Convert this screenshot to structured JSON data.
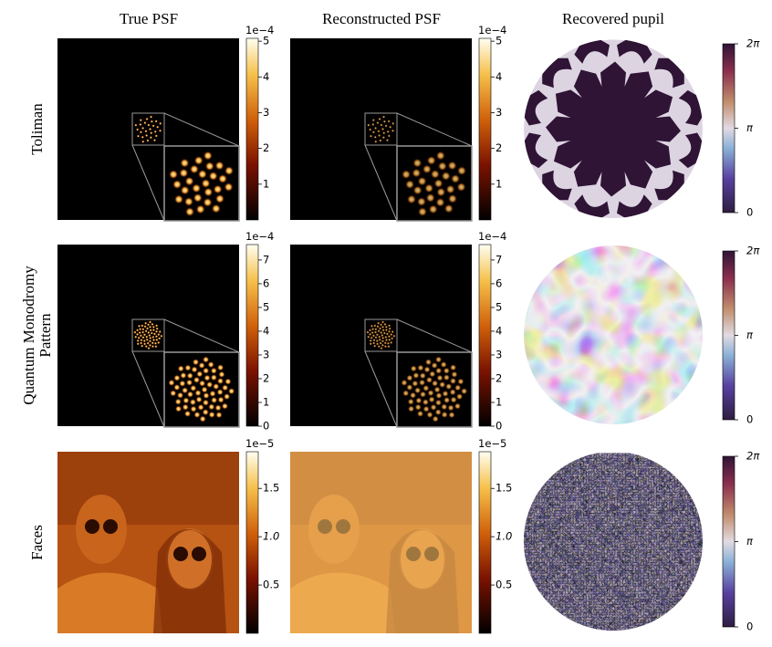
{
  "columns": [
    "True PSF",
    "Reconstructed PSF",
    "Recovered pupil"
  ],
  "rows": [
    {
      "label_lines": [
        "Toliman"
      ],
      "true_colorbar": {
        "offset": "1e−4",
        "lim": [
          0,
          5.08
        ],
        "ticks": [
          1,
          2,
          3,
          4,
          5
        ]
      },
      "reconstructed_colorbar": {
        "offset": "1e−4",
        "lim": [
          0,
          5.08
        ],
        "ticks": [
          1,
          2,
          3,
          4,
          5
        ]
      },
      "pupil_colorbar": {
        "lim": [
          0,
          6.28318
        ],
        "ticks": [
          {
            "value": 0,
            "label": "0"
          },
          {
            "value": 3.14159,
            "label": "π"
          },
          {
            "value": 6.28318,
            "label": "2π"
          }
        ]
      }
    },
    {
      "label_lines": [
        "Quantum Monodromy",
        "Pattern"
      ],
      "true_colorbar": {
        "offset": "1e−4",
        "lim": [
          0,
          7.65
        ],
        "ticks": [
          0,
          1,
          2,
          3,
          4,
          5,
          6,
          7
        ]
      },
      "reconstructed_colorbar": {
        "offset": "1e−4",
        "lim": [
          0,
          7.65
        ],
        "ticks": [
          0,
          1,
          2,
          3,
          4,
          5,
          6,
          7
        ]
      },
      "pupil_colorbar": {
        "lim": [
          0,
          6.28318
        ],
        "ticks": [
          {
            "value": 0,
            "label": "0"
          },
          {
            "value": 3.14159,
            "label": "π"
          },
          {
            "value": 6.28318,
            "label": "2π"
          }
        ]
      }
    },
    {
      "label_lines": [
        "Faces"
      ],
      "true_colorbar": {
        "offset": "1e−5",
        "lim": [
          0,
          1.88
        ],
        "ticks": [
          0.5,
          {
            "value": 1,
            "label": "1.0"
          },
          1.5
        ]
      },
      "reconstructed_colorbar": {
        "offset": "1e−5",
        "lim": [
          0,
          1.88
        ],
        "ticks": [
          0.5,
          {
            "value": 1,
            "label": "1.0"
          },
          1.5
        ]
      },
      "pupil_colorbar": {
        "lim": [
          0,
          6.28318
        ],
        "ticks": [
          {
            "value": 0,
            "label": "0"
          },
          {
            "value": 3.14159,
            "label": "π"
          },
          {
            "value": 6.28318,
            "label": "2π"
          }
        ]
      }
    }
  ]
}
